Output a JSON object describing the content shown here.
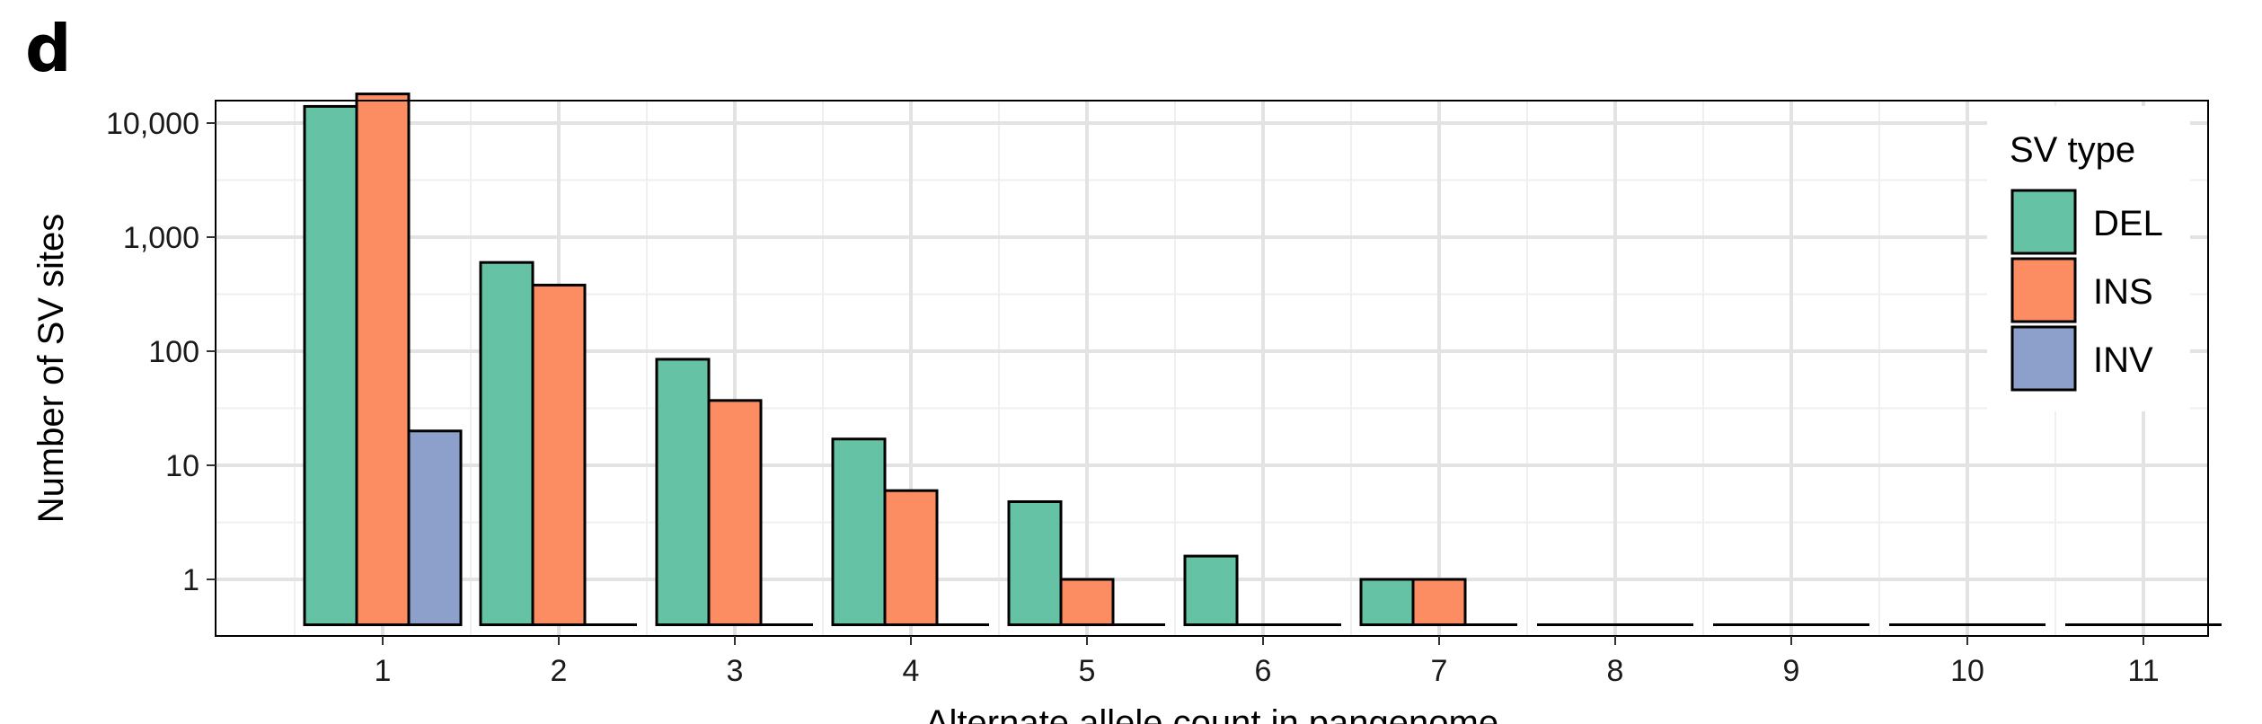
{
  "panel_label": "d",
  "chart_data": {
    "type": "bar",
    "scale": "log",
    "grid": true,
    "legend_position": "top-right",
    "xlabel": "Alternate allele count in pangenome",
    "ylabel": "Number of SV sites",
    "categories": [
      "1",
      "2",
      "3",
      "4",
      "5",
      "6",
      "7",
      "8",
      "9",
      "10",
      "11"
    ],
    "y_ticks": [
      1,
      10,
      100,
      1000,
      10000
    ],
    "y_tick_labels": [
      "1",
      "10",
      "100",
      "1,000",
      "10,000"
    ],
    "ylim": [
      0.4,
      30000
    ],
    "legend_title": "SV type",
    "series": [
      {
        "name": "DEL",
        "color": "#66c2a5",
        "values": [
          14000,
          600,
          85,
          17,
          4.8,
          1.6,
          1,
          null,
          null,
          null,
          null
        ]
      },
      {
        "name": "INS",
        "color": "#fc8d62",
        "values": [
          18000,
          380,
          37,
          6,
          1,
          null,
          1,
          null,
          null,
          null,
          null
        ]
      },
      {
        "name": "INV",
        "color": "#8da0cb",
        "values": [
          20,
          null,
          null,
          null,
          null,
          null,
          null,
          null,
          null,
          null,
          null
        ]
      }
    ]
  }
}
